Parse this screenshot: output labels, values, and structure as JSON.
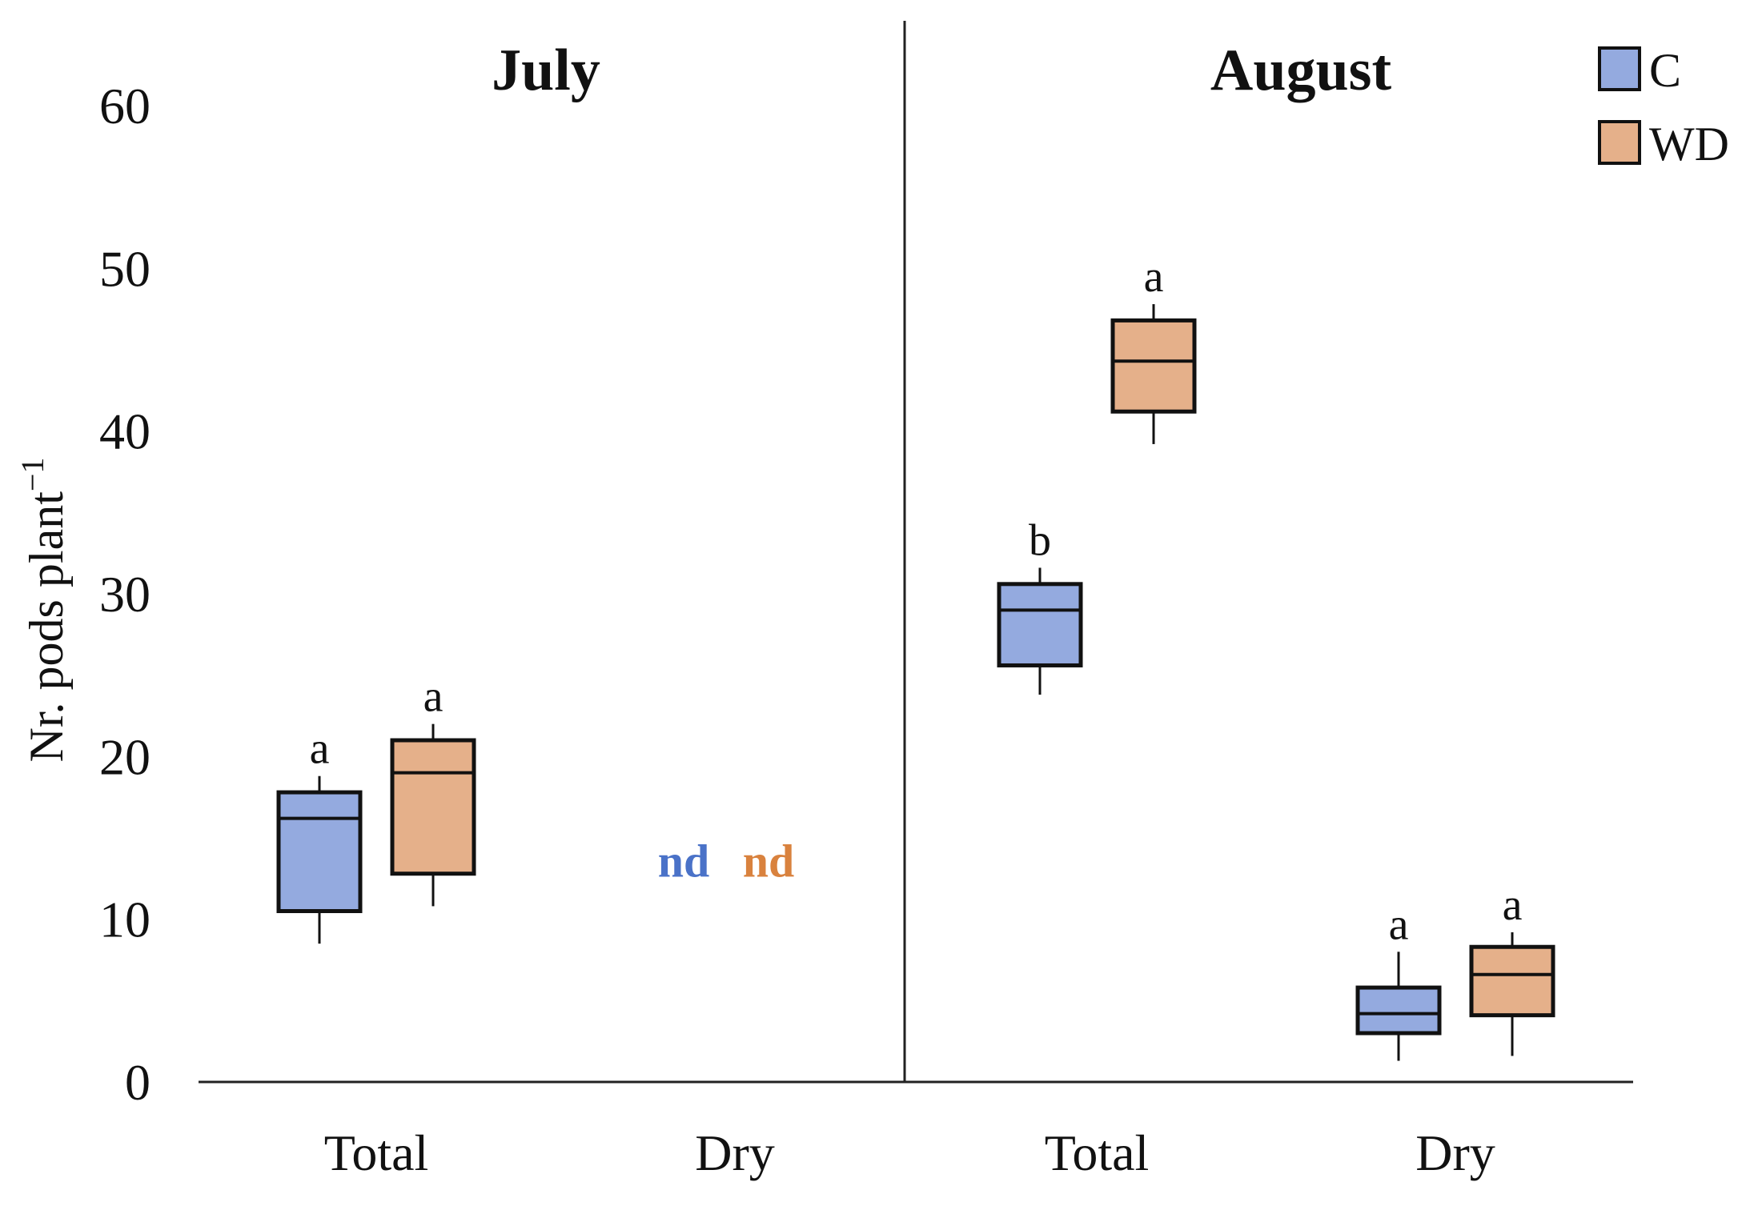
{
  "chart_data": {
    "type": "boxplot",
    "ylabel": "Nr. pods plant",
    "ylabel_superscript": "−1",
    "ylim": [
      0,
      60
    ],
    "yticks": [
      0,
      10,
      20,
      30,
      40,
      50,
      60
    ],
    "panels": [
      {
        "title": "July",
        "groups": [
          {
            "category": "Total",
            "boxes": [
              {
                "series": "C",
                "whisker_low": 8.5,
                "q1": 10.5,
                "median": 16.2,
                "q3": 17.8,
                "whisker_high": 18.8,
                "label": "a"
              },
              {
                "series": "WD",
                "whisker_low": 10.8,
                "q1": 12.8,
                "median": 19.0,
                "q3": 21.0,
                "whisker_high": 22.0,
                "label": "a"
              }
            ]
          },
          {
            "category": "Dry",
            "boxes": [],
            "nd_labels": [
              {
                "series": "C",
                "text": "nd",
                "value": 13.6
              },
              {
                "series": "WD",
                "text": "nd",
                "value": 13.6
              }
            ]
          }
        ]
      },
      {
        "title": "August",
        "groups": [
          {
            "category": "Total",
            "boxes": [
              {
                "series": "C",
                "whisker_low": 23.8,
                "q1": 25.6,
                "median": 29.0,
                "q3": 30.6,
                "whisker_high": 31.6,
                "label": "b"
              },
              {
                "series": "WD",
                "whisker_low": 39.2,
                "q1": 41.2,
                "median": 44.3,
                "q3": 46.8,
                "whisker_high": 47.8,
                "label": "a"
              }
            ]
          },
          {
            "category": "Dry",
            "boxes": [
              {
                "series": "C",
                "whisker_low": 1.3,
                "q1": 3.0,
                "median": 4.2,
                "q3": 5.8,
                "whisker_high": 8.0,
                "label": "a"
              },
              {
                "series": "WD",
                "whisker_low": 1.6,
                "q1": 4.1,
                "median": 6.6,
                "q3": 8.3,
                "whisker_high": 9.2,
                "label": "a"
              }
            ]
          }
        ]
      }
    ],
    "legend": {
      "position": "top-right",
      "entries": [
        {
          "series": "C",
          "label": "C"
        },
        {
          "series": "WD",
          "label": "WD"
        }
      ]
    },
    "colors": {
      "C": "#94aadf",
      "WD": "#e5b08a",
      "nd_C": "#4a72c8",
      "nd_WD": "#d9823e",
      "stroke": "#111111"
    }
  }
}
